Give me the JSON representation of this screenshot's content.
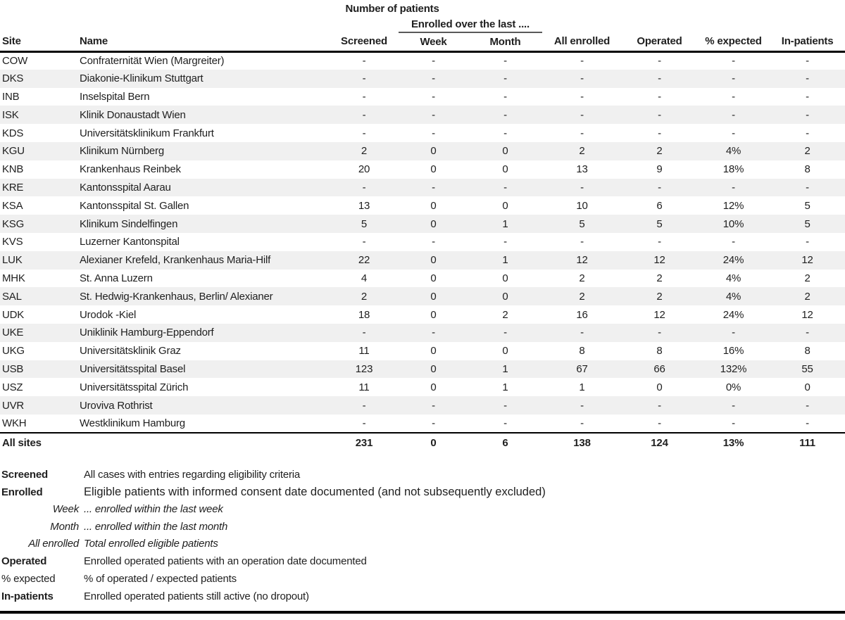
{
  "table": {
    "title": "Number of patients",
    "group_header": "Enrolled over the last ....",
    "columns": [
      "Site",
      "Name",
      "Screened",
      "Week",
      "Month",
      "All enrolled",
      "Operated",
      "% expected",
      "In-patients"
    ],
    "rows": [
      {
        "site": "COW",
        "name": "Confraternität Wien (Margreiter)",
        "values": [
          "-",
          "-",
          "-",
          "-",
          "-",
          "-",
          "-"
        ]
      },
      {
        "site": "DKS",
        "name": "Diakonie-Klinikum Stuttgart",
        "values": [
          "-",
          "-",
          "-",
          "-",
          "-",
          "-",
          "-"
        ]
      },
      {
        "site": "INB",
        "name": "Inselspital Bern",
        "values": [
          "-",
          "-",
          "-",
          "-",
          "-",
          "-",
          "-"
        ]
      },
      {
        "site": "ISK",
        "name": "Klinik Donaustadt Wien",
        "values": [
          "-",
          "-",
          "-",
          "-",
          "-",
          "-",
          "-"
        ]
      },
      {
        "site": "KDS",
        "name": "Universitätsklinikum Frankfurt",
        "values": [
          "-",
          "-",
          "-",
          "-",
          "-",
          "-",
          "-"
        ]
      },
      {
        "site": "KGU",
        "name": "Klinikum Nürnberg",
        "values": [
          "2",
          "0",
          "0",
          "2",
          "2",
          "4%",
          "2"
        ]
      },
      {
        "site": "KNB",
        "name": "Krankenhaus Reinbek",
        "values": [
          "20",
          "0",
          "0",
          "13",
          "9",
          "18%",
          "8"
        ]
      },
      {
        "site": "KRE",
        "name": "Kantonsspital Aarau",
        "values": [
          "-",
          "-",
          "-",
          "-",
          "-",
          "-",
          "-"
        ]
      },
      {
        "site": "KSA",
        "name": "Kantonsspital St. Gallen",
        "values": [
          "13",
          "0",
          "0",
          "10",
          "6",
          "12%",
          "5"
        ]
      },
      {
        "site": "KSG",
        "name": "Klinikum Sindelfingen",
        "values": [
          "5",
          "0",
          "1",
          "5",
          "5",
          "10%",
          "5"
        ]
      },
      {
        "site": "KVS",
        "name": "Luzerner Kantonspital",
        "values": [
          "-",
          "-",
          "-",
          "-",
          "-",
          "-",
          "-"
        ]
      },
      {
        "site": "LUK",
        "name": "Alexianer Krefeld, Krankenhaus Maria-Hilf",
        "values": [
          "22",
          "0",
          "1",
          "12",
          "12",
          "24%",
          "12"
        ]
      },
      {
        "site": "MHK",
        "name": "St. Anna Luzern",
        "values": [
          "4",
          "0",
          "0",
          "2",
          "2",
          "4%",
          "2"
        ]
      },
      {
        "site": "SAL",
        "name": "St. Hedwig-Krankenhaus, Berlin/ Alexianer",
        "values": [
          "2",
          "0",
          "0",
          "2",
          "2",
          "4%",
          "2"
        ]
      },
      {
        "site": "UDK",
        "name": "Urodok -Kiel",
        "values": [
          "18",
          "0",
          "2",
          "16",
          "12",
          "24%",
          "12"
        ]
      },
      {
        "site": "UKE",
        "name": "Uniklinik Hamburg-Eppendorf",
        "values": [
          "-",
          "-",
          "-",
          "-",
          "-",
          "-",
          "-"
        ]
      },
      {
        "site": "UKG",
        "name": "Universitätsklinik Graz",
        "values": [
          "11",
          "0",
          "0",
          "8",
          "8",
          "16%",
          "8"
        ]
      },
      {
        "site": "USB",
        "name": "Universitätsspital Basel",
        "values": [
          "123",
          "0",
          "1",
          "67",
          "66",
          "132%",
          "55"
        ]
      },
      {
        "site": "USZ",
        "name": "Universitätsspital Zürich",
        "values": [
          "11",
          "0",
          "1",
          "1",
          "0",
          "0%",
          "0"
        ]
      },
      {
        "site": "UVR",
        "name": "Uroviva Rothrist",
        "values": [
          "-",
          "-",
          "-",
          "-",
          "-",
          "-",
          "-"
        ]
      },
      {
        "site": "WKH",
        "name": "Westklinikum Hamburg",
        "values": [
          "-",
          "-",
          "-",
          "-",
          "-",
          "-",
          "-"
        ]
      }
    ],
    "totals": {
      "label": "All sites",
      "values": [
        "231",
        "0",
        "6",
        "138",
        "124",
        "13%",
        "111"
      ]
    }
  },
  "legend": {
    "items": [
      {
        "term": "Screened",
        "definition": "All cases with entries regarding eligibility criteria",
        "style": "bold"
      },
      {
        "term": "Enrolled",
        "definition": "Eligible patients with informed consent date documented (and not subsequently excluded)",
        "style": "bold-arial"
      },
      {
        "term": "Week",
        "definition": "... enrolled within the last week",
        "style": "italic"
      },
      {
        "term": "Month",
        "definition": "... enrolled within the last month",
        "style": "italic"
      },
      {
        "term": "All enrolled",
        "definition": "Total enrolled eligible patients",
        "style": "italic"
      },
      {
        "term": "Operated",
        "definition": "Enrolled operated patients with an operation date documented",
        "style": "bold"
      },
      {
        "term": "% expected",
        "definition": "% of operated / expected patients",
        "style": "normal"
      },
      {
        "term": "In-patients",
        "definition": "Enrolled operated patients still active (no dropout)",
        "style": "bold"
      }
    ]
  },
  "colors": {
    "band": "#f0f0f0",
    "text": "#1f1f1f",
    "rule": "#000000",
    "group_rule": "#595959"
  }
}
